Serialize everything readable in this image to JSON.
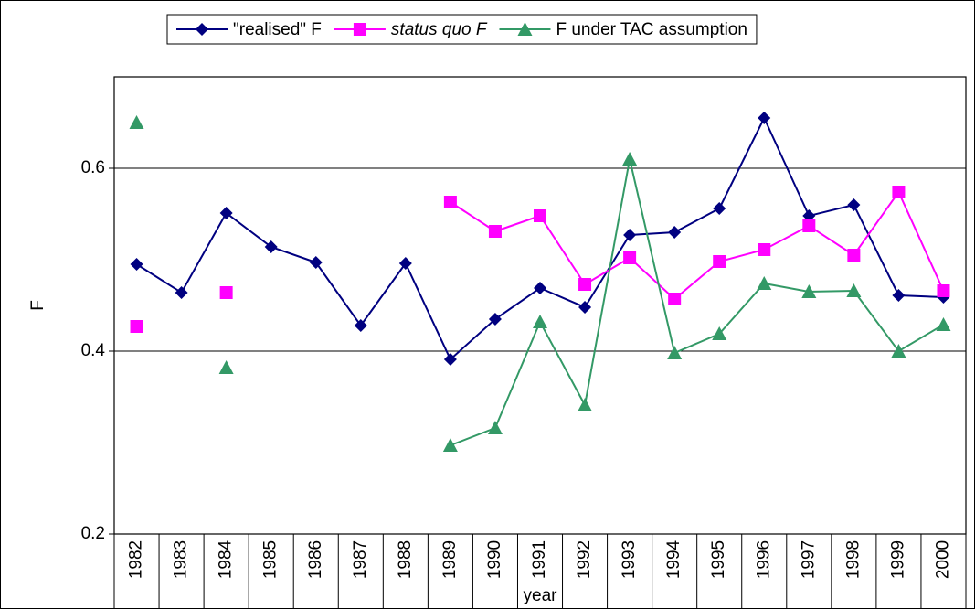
{
  "chart_data": {
    "type": "line",
    "x_label": "year",
    "y_label": "F",
    "categories": [
      "1982",
      "1983",
      "1984",
      "1985",
      "1986",
      "1987",
      "1988",
      "1989",
      "1990",
      "1991",
      "1992",
      "1993",
      "1994",
      "1995",
      "1996",
      "1997",
      "1998",
      "1999",
      "2000"
    ],
    "series": [
      {
        "name": "\"realised\" F",
        "color": "#000080",
        "marker": "diamond",
        "values": [
          0.495,
          0.464,
          0.551,
          0.514,
          0.497,
          0.428,
          0.496,
          0.391,
          0.435,
          0.469,
          0.448,
          0.527,
          0.53,
          0.556,
          0.655,
          0.548,
          0.56,
          0.461,
          0.459
        ]
      },
      {
        "name": "status quo F",
        "color": "#ff00ff",
        "marker": "square",
        "values": [
          0.427,
          null,
          0.464,
          null,
          null,
          null,
          null,
          0.563,
          0.531,
          0.548,
          0.473,
          0.502,
          0.457,
          0.498,
          0.511,
          0.537,
          0.505,
          0.574,
          0.466
        ]
      },
      {
        "name": "F under TAC assumption",
        "color": "#339966",
        "marker": "triangle",
        "values": [
          0.65,
          null,
          0.382,
          null,
          null,
          null,
          null,
          0.297,
          0.316,
          0.432,
          0.341,
          0.61,
          0.398,
          0.419,
          0.474,
          0.465,
          0.466,
          0.4,
          0.429
        ]
      }
    ],
    "ylim": [
      0.2,
      0.7
    ],
    "yticks": [
      0.2,
      0.4,
      0.6
    ],
    "grid": true,
    "legend": "top"
  }
}
